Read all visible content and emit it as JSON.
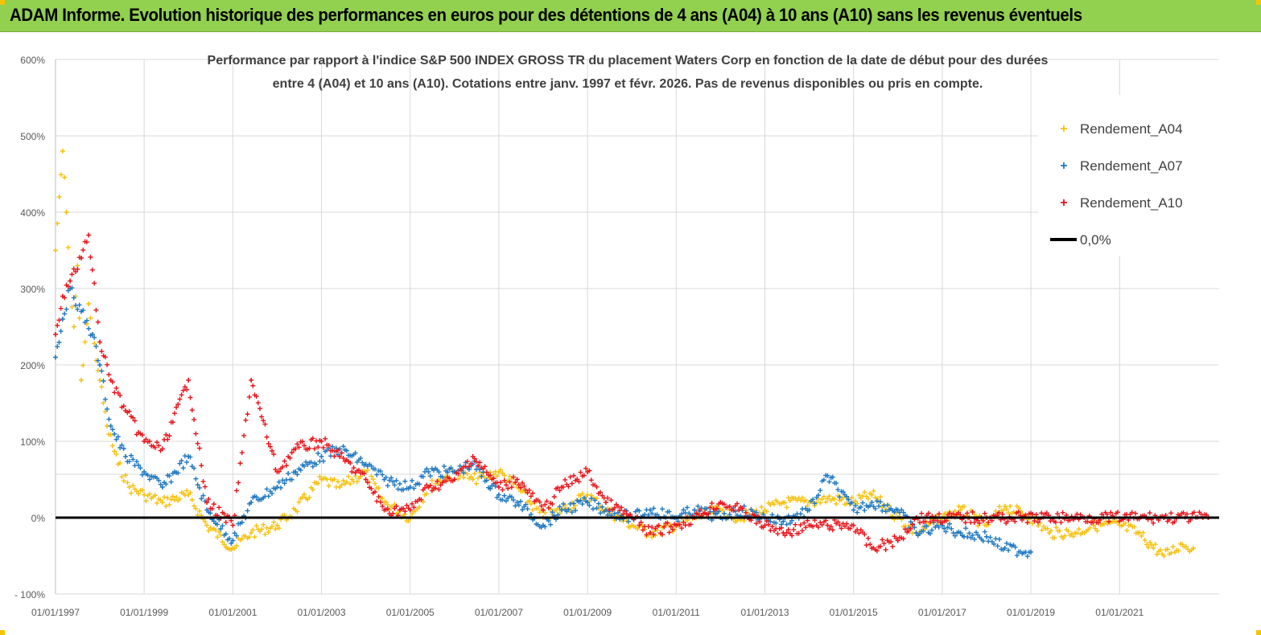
{
  "banner": {
    "title": "ADAM Informe. Evolution historique des performances en euros pour des détentions de 4 ans (A04) à 10 ans (A10) sans les revenus éventuels"
  },
  "chart_data": {
    "type": "scatter",
    "title_line1": "Performance par rapport à l'indice S&P 500 INDEX GROSS TR  du placement Waters Corp en fonction de la date de début pour des durées",
    "title_line2": "entre 4 (A04) et 10 ans (A10). Cotations entre janv. 1997 et févr. 2026. Pas de revenus disponibles ou pris en compte.",
    "y_ticks": [
      "600%",
      "500%",
      "400%",
      "300%",
      "200%",
      "100%",
      "0%",
      "- 100%"
    ],
    "x_ticks": [
      "01/01/1997",
      "01/01/1999",
      "01/01/2001",
      "01/01/2003",
      "01/01/2005",
      "01/01/2007",
      "01/01/2009",
      "01/01/2011",
      "01/01/2013",
      "01/01/2015",
      "01/01/2017",
      "01/01/2019",
      "01/01/2021"
    ],
    "xlim": [
      "1997-01-01",
      "2023-04-01"
    ],
    "ylim": [
      -100,
      600
    ],
    "legend_position": "top-right",
    "legend": [
      {
        "label": "Rendement_A04",
        "color": "#f5c10f",
        "marker": "+"
      },
      {
        "label": "Rendement_A07",
        "color": "#1f78c1",
        "marker": "+"
      },
      {
        "label": "Rendement_A10",
        "color": "#e8141b",
        "marker": "+"
      },
      {
        "label": "0,0%",
        "color": "#000000",
        "marker": "line"
      }
    ],
    "series": [
      {
        "name": "Rendement_A04",
        "color": "#f5c10f",
        "points": [
          [
            "1997-01-01",
            350
          ],
          [
            "1997-02-01",
            420
          ],
          [
            "1997-03-01",
            480
          ],
          [
            "1997-04-01",
            400
          ],
          [
            "1997-05-01",
            300
          ],
          [
            "1997-06-01",
            250
          ],
          [
            "1997-07-01",
            330
          ],
          [
            "1997-08-01",
            180
          ],
          [
            "1997-09-01",
            230
          ],
          [
            "1997-10-01",
            280
          ],
          [
            "1997-11-01",
            240
          ],
          [
            "1998-01-01",
            180
          ],
          [
            "1998-03-01",
            120
          ],
          [
            "1998-06-01",
            70
          ],
          [
            "1998-09-01",
            40
          ],
          [
            "1999-01-01",
            30
          ],
          [
            "1999-06-01",
            20
          ],
          [
            "2000-01-01",
            30
          ],
          [
            "2000-06-01",
            -10
          ],
          [
            "2001-01-01",
            -40
          ],
          [
            "2001-06-01",
            -20
          ],
          [
            "2002-01-01",
            -10
          ],
          [
            "2002-06-01",
            10
          ],
          [
            "2003-01-01",
            50
          ],
          [
            "2003-06-01",
            40
          ],
          [
            "2004-01-01",
            60
          ],
          [
            "2004-06-01",
            20
          ],
          [
            "2005-01-01",
            0
          ],
          [
            "2005-06-01",
            40
          ],
          [
            "2006-01-01",
            60
          ],
          [
            "2006-06-01",
            50
          ],
          [
            "2007-01-01",
            60
          ],
          [
            "2007-06-01",
            40
          ],
          [
            "2008-01-01",
            0
          ],
          [
            "2008-06-01",
            10
          ],
          [
            "2009-01-01",
            30
          ],
          [
            "2009-06-01",
            10
          ],
          [
            "2010-01-01",
            -10
          ],
          [
            "2010-06-01",
            -20
          ],
          [
            "2011-01-01",
            -10
          ],
          [
            "2011-06-01",
            0
          ],
          [
            "2012-01-01",
            10
          ],
          [
            "2012-06-01",
            0
          ],
          [
            "2013-01-01",
            10
          ],
          [
            "2013-06-01",
            20
          ],
          [
            "2014-01-01",
            20
          ],
          [
            "2014-06-01",
            25
          ],
          [
            "2015-01-01",
            20
          ],
          [
            "2015-06-01",
            30
          ],
          [
            "2016-01-01",
            0
          ],
          [
            "2016-06-01",
            -20
          ],
          [
            "2017-01-01",
            0
          ],
          [
            "2017-06-01",
            10
          ],
          [
            "2018-01-01",
            -10
          ],
          [
            "2018-06-01",
            15
          ],
          [
            "2019-01-01",
            0
          ],
          [
            "2019-06-01",
            -20
          ],
          [
            "2020-01-01",
            -20
          ],
          [
            "2020-06-01",
            -10
          ],
          [
            "2021-01-01",
            -10
          ],
          [
            "2021-06-01",
            -20
          ],
          [
            "2022-01-01",
            -50
          ],
          [
            "2022-06-01",
            -35
          ],
          [
            "2022-09-01",
            -40
          ]
        ]
      },
      {
        "name": "Rendement_A07",
        "color": "#1f78c1",
        "points": [
          [
            "1997-01-01",
            210
          ],
          [
            "1997-03-01",
            260
          ],
          [
            "1997-05-01",
            300
          ],
          [
            "1997-08-01",
            270
          ],
          [
            "1997-11-01",
            240
          ],
          [
            "1998-01-01",
            200
          ],
          [
            "1998-04-01",
            120
          ],
          [
            "1998-08-01",
            80
          ],
          [
            "1999-01-01",
            60
          ],
          [
            "1999-06-01",
            40
          ],
          [
            "2000-01-01",
            80
          ],
          [
            "2000-06-01",
            10
          ],
          [
            "2001-01-01",
            -30
          ],
          [
            "2001-06-01",
            20
          ],
          [
            "2002-01-01",
            40
          ],
          [
            "2002-06-01",
            60
          ],
          [
            "2003-01-01",
            80
          ],
          [
            "2003-06-01",
            90
          ],
          [
            "2004-01-01",
            70
          ],
          [
            "2004-06-01",
            50
          ],
          [
            "2005-01-01",
            40
          ],
          [
            "2005-06-01",
            60
          ],
          [
            "2006-01-01",
            60
          ],
          [
            "2006-06-01",
            70
          ],
          [
            "2007-01-01",
            30
          ],
          [
            "2007-06-01",
            20
          ],
          [
            "2008-01-01",
            -10
          ],
          [
            "2008-06-01",
            10
          ],
          [
            "2009-01-01",
            20
          ],
          [
            "2009-06-01",
            10
          ],
          [
            "2010-01-01",
            0
          ],
          [
            "2010-06-01",
            10
          ],
          [
            "2011-01-01",
            0
          ],
          [
            "2011-06-01",
            10
          ],
          [
            "2012-01-01",
            0
          ],
          [
            "2012-06-01",
            10
          ],
          [
            "2013-01-01",
            0
          ],
          [
            "2013-06-01",
            -5
          ],
          [
            "2014-01-01",
            10
          ],
          [
            "2014-06-01",
            55
          ],
          [
            "2015-01-01",
            10
          ],
          [
            "2015-06-01",
            20
          ],
          [
            "2016-01-01",
            10
          ],
          [
            "2016-06-01",
            -20
          ],
          [
            "2017-01-01",
            -10
          ],
          [
            "2017-06-01",
            -20
          ],
          [
            "2018-01-01",
            -25
          ],
          [
            "2018-06-01",
            -40
          ],
          [
            "2019-01-01",
            -45
          ]
        ]
      },
      {
        "name": "Rendement_A10",
        "color": "#e8141b",
        "points": [
          [
            "1997-01-01",
            240
          ],
          [
            "1997-03-01",
            290
          ],
          [
            "1997-05-01",
            310
          ],
          [
            "1997-08-01",
            340
          ],
          [
            "1997-10-01",
            370
          ],
          [
            "1998-01-01",
            230
          ],
          [
            "1998-04-01",
            180
          ],
          [
            "1998-08-01",
            140
          ],
          [
            "1999-01-01",
            100
          ],
          [
            "1999-06-01",
            90
          ],
          [
            "2000-01-01",
            180
          ],
          [
            "2000-06-01",
            20
          ],
          [
            "2001-01-01",
            -10
          ],
          [
            "2001-06-01",
            180
          ],
          [
            "2002-01-01",
            60
          ],
          [
            "2002-06-01",
            90
          ],
          [
            "2003-01-01",
            100
          ],
          [
            "2003-06-01",
            80
          ],
          [
            "2004-01-01",
            50
          ],
          [
            "2004-06-01",
            10
          ],
          [
            "2005-01-01",
            10
          ],
          [
            "2005-06-01",
            40
          ],
          [
            "2006-01-01",
            50
          ],
          [
            "2006-06-01",
            80
          ],
          [
            "2007-01-01",
            40
          ],
          [
            "2007-06-01",
            50
          ],
          [
            "2008-01-01",
            10
          ],
          [
            "2008-06-01",
            40
          ],
          [
            "2009-01-01",
            60
          ],
          [
            "2009-06-01",
            20
          ],
          [
            "2010-01-01",
            0
          ],
          [
            "2010-06-01",
            -20
          ],
          [
            "2011-01-01",
            -10
          ],
          [
            "2011-06-01",
            0
          ],
          [
            "2012-01-01",
            20
          ],
          [
            "2012-06-01",
            10
          ],
          [
            "2013-01-01",
            -10
          ],
          [
            "2013-06-01",
            -20
          ],
          [
            "2014-01-01",
            -10
          ],
          [
            "2014-06-01",
            -10
          ],
          [
            "2015-01-01",
            -10
          ],
          [
            "2015-06-01",
            -40
          ],
          [
            "2016-01-01",
            -30
          ],
          [
            "2016-06-01",
            0
          ],
          [
            "2018-01-01",
            0
          ],
          [
            "2020-01-01",
            0
          ],
          [
            "2022-01-01",
            0
          ],
          [
            "2023-01-01",
            0
          ]
        ]
      }
    ]
  }
}
